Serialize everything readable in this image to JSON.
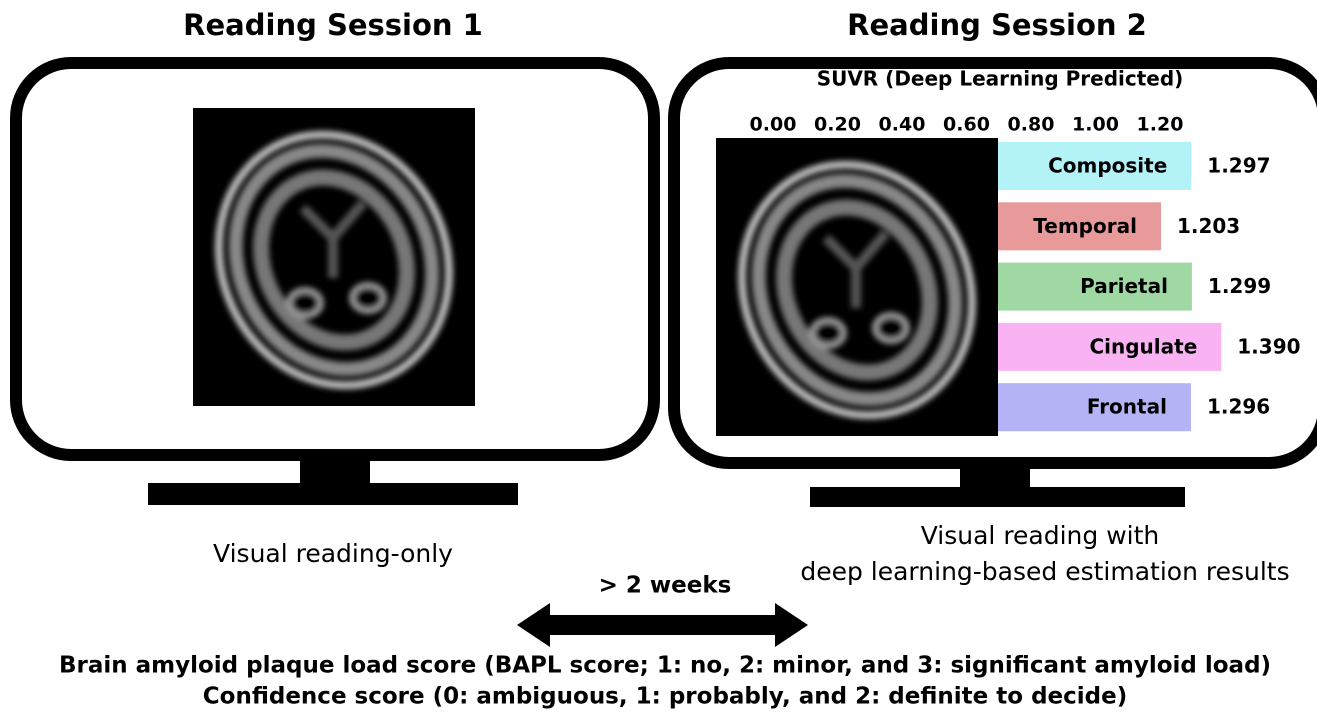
{
  "sessions": [
    {
      "title": "Reading Session 1",
      "caption": [
        "Visual reading-only"
      ]
    },
    {
      "title": "Reading Session 2",
      "caption": [
        "Visual reading with",
        "deep learning-based estimation results"
      ]
    }
  ],
  "interval": "> 2 weeks",
  "scores": [
    "Brain amyloid plaque load score (BAPL score; 1: no, 2: minor, and 3: significant amyloid load)",
    "Confidence score (0: ambiguous, 1: probably, and 2: definite to decide)"
  ],
  "chart_data": {
    "type": "bar",
    "orientation": "horizontal",
    "title": "SUVR (Deep Learning Predicted)",
    "categories": [
      "Composite",
      "Temporal",
      "Parietal",
      "Cingulate",
      "Frontal"
    ],
    "values": [
      1.297,
      1.203,
      1.299,
      1.39,
      1.296
    ],
    "value_labels": [
      "1.297",
      "1.203",
      "1.299",
      "1.390",
      "1.296"
    ],
    "colors": [
      "#b3f3f7",
      "#e8999a",
      "#9fd8a3",
      "#f9b3f3",
      "#b3b3f5"
    ],
    "xlim": [
      0,
      1.4
    ],
    "xticks": [
      {
        "value": 0,
        "label": "0.00"
      },
      {
        "value": 0.2,
        "label": "0.20"
      },
      {
        "value": 0.4,
        "label": "0.40"
      },
      {
        "value": 0.6,
        "label": "0.60"
      },
      {
        "value": 0.8,
        "label": "0.80"
      },
      {
        "value": 1.0,
        "label": "1.00"
      },
      {
        "value": 1.2,
        "label": "1.20"
      }
    ]
  }
}
